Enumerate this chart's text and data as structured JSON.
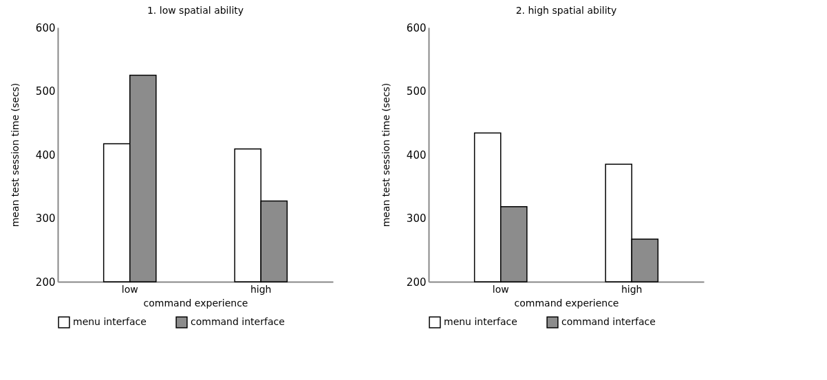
{
  "chart_data": [
    {
      "type": "bar",
      "title": "1. low spatial ability",
      "xlabel": "command experience",
      "ylabel": "mean test session time (secs)",
      "categories": [
        "low",
        "high"
      ],
      "series": [
        {
          "name": "menu interface",
          "color": "#ffffff",
          "values": [
            417,
            409
          ]
        },
        {
          "name": "command interface",
          "color": "#8c8c8c",
          "values": [
            525,
            327
          ]
        }
      ],
      "ylim": [
        200,
        600
      ],
      "yticks": [
        200,
        300,
        400,
        500,
        600
      ],
      "legend": "bottom",
      "grid": false
    },
    {
      "type": "bar",
      "title": "2. high spatial ability",
      "xlabel": "command experience",
      "ylabel": "mean test session time (secs)",
      "categories": [
        "low",
        "high"
      ],
      "series": [
        {
          "name": "menu interface",
          "color": "#ffffff",
          "values": [
            434,
            385
          ]
        },
        {
          "name": "command interface",
          "color": "#8c8c8c",
          "values": [
            318,
            267
          ]
        }
      ],
      "ylim": [
        200,
        600
      ],
      "yticks": [
        200,
        300,
        400,
        500,
        600
      ],
      "legend": "bottom",
      "grid": false
    }
  ]
}
